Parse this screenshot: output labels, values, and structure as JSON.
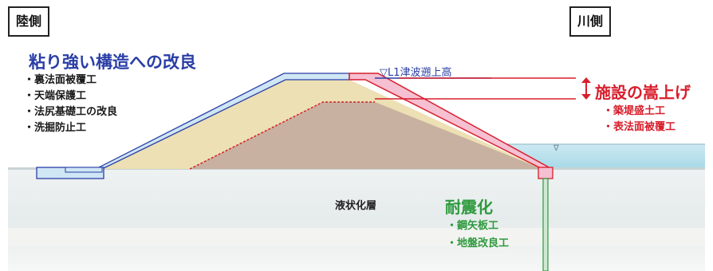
{
  "labels": {
    "land_side": "陸側",
    "river_side": "川側",
    "water_level": "▽L1津波遡上高",
    "liquefaction_layer": "液状化層"
  },
  "measures": {
    "resilient": {
      "title": "粘り強い構造への改良",
      "items": [
        "・裏法面被覆工",
        "・天端保護工",
        "・法尻基礎工の改良",
        "・洗掘防止工"
      ]
    },
    "raising": {
      "title": "施設の嵩上げ",
      "items": [
        "・築堤盛土工",
        "・表法面被覆工"
      ]
    },
    "seismic": {
      "title": "耐震化",
      "items": [
        "・鋼矢板工",
        "・地盤改良工"
      ]
    }
  },
  "colors": {
    "blue": "#2a3ea6",
    "red": "#d81e2c",
    "green": "#2e9a3e"
  }
}
